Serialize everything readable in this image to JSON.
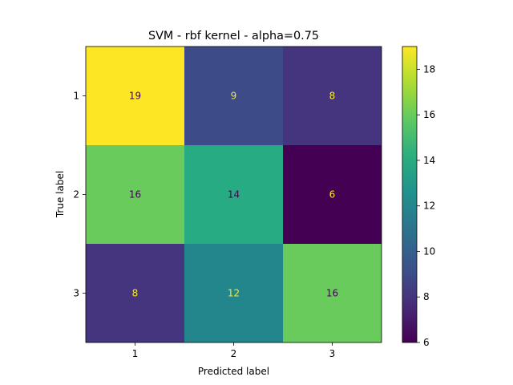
{
  "chart_data": {
    "type": "heatmap",
    "title": "SVM - rbf kernel - alpha=0.75",
    "xlabel": "Predicted label",
    "ylabel": "True label",
    "x_categories": [
      "1",
      "2",
      "3"
    ],
    "y_categories": [
      "1",
      "2",
      "3"
    ],
    "values": [
      [
        19,
        9,
        8
      ],
      [
        16,
        14,
        6
      ],
      [
        8,
        12,
        16
      ]
    ],
    "colormap": "viridis",
    "color_range": [
      6,
      19
    ],
    "colorbar_ticks": [
      6,
      8,
      10,
      12,
      14,
      16,
      18
    ],
    "text_color_dark": "#440154",
    "text_color_light": "#fde725",
    "grid": false
  }
}
